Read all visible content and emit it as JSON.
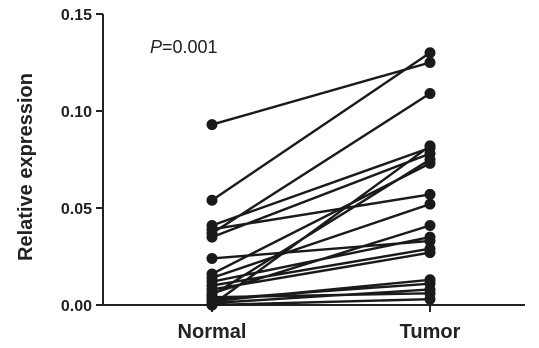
{
  "chart_data": {
    "type": "line",
    "title": "",
    "xlabel": "",
    "ylabel": "Relative expression",
    "categories": [
      "Normal",
      "Tumor"
    ],
    "ylim": [
      0,
      0.15
    ],
    "yticks": [
      0.0,
      0.05,
      0.1,
      0.15
    ],
    "ytick_labels": [
      "0.00",
      "0.05",
      "0.10",
      "0.15"
    ],
    "grid": false,
    "legend": "none",
    "annotation": {
      "italic": "P",
      "rest": "=0.001"
    },
    "color": "#1a1a1a",
    "pairs": [
      [
        0.093,
        0.125
      ],
      [
        0.054,
        0.13
      ],
      [
        0.041,
        0.081
      ],
      [
        0.039,
        0.057
      ],
      [
        0.037,
        0.109
      ],
      [
        0.035,
        0.078
      ],
      [
        0.024,
        0.033
      ],
      [
        0.016,
        0.073
      ],
      [
        0.014,
        0.052
      ],
      [
        0.012,
        0.035
      ],
      [
        0.01,
        0.029
      ],
      [
        0.008,
        0.027
      ],
      [
        0.006,
        0.041
      ],
      [
        0.005,
        0.075
      ],
      [
        0.004,
        0.006
      ],
      [
        0.003,
        0.011
      ],
      [
        0.002,
        0.013
      ],
      [
        0.001,
        0.008
      ],
      [
        0.0,
        0.003
      ],
      [
        0.0,
        0.082
      ]
    ]
  }
}
